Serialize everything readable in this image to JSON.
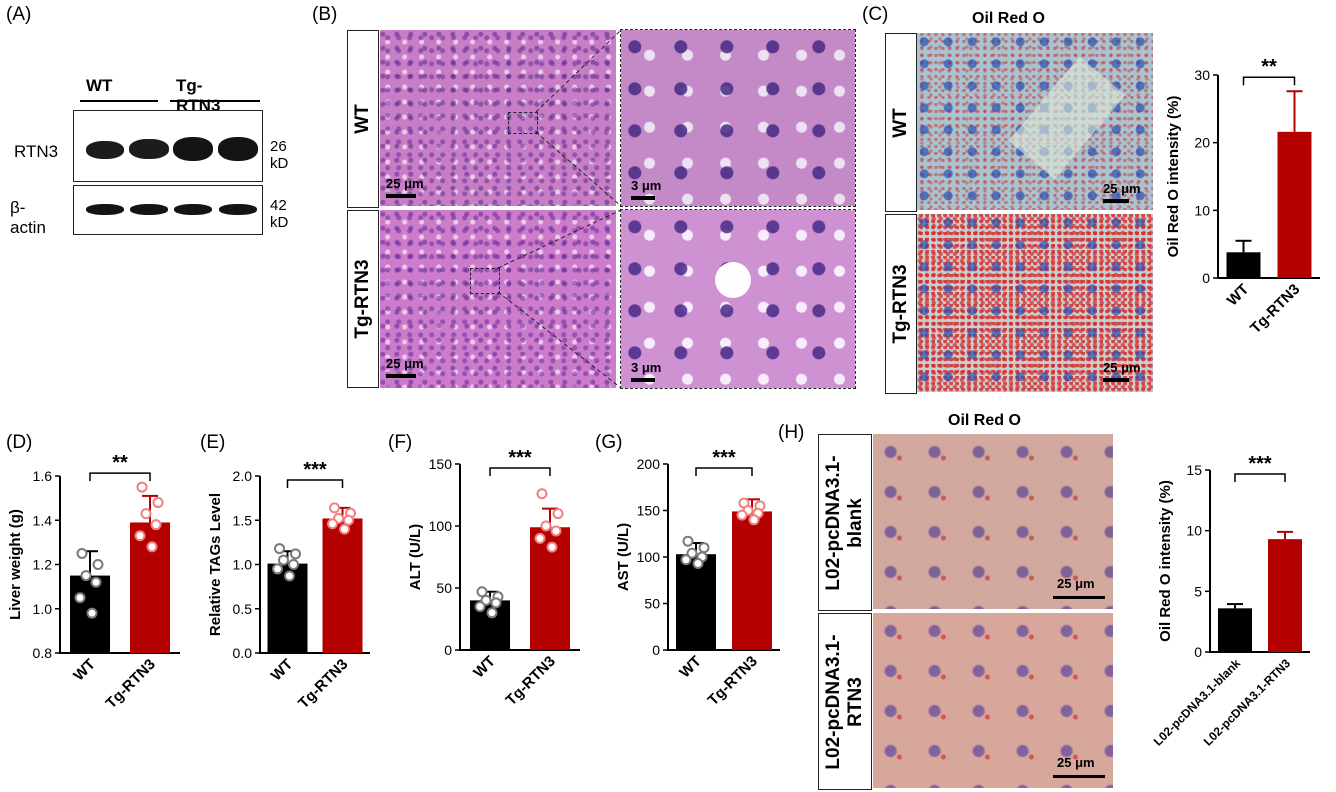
{
  "panels": {
    "A": "(A)",
    "B": "(B)",
    "C": "(C)",
    "D": "(D)",
    "E": "(E)",
    "F": "(F)",
    "G": "(G)",
    "H": "(H)"
  },
  "blot": {
    "group_wt": "WT",
    "group_tg": "Tg-RTN3",
    "row1_label": "RTN3",
    "row1_size": "26 kD",
    "row2_label": "β-actin",
    "row2_size": "42 kD"
  },
  "he": {
    "row_wt": "WT",
    "row_tg": "Tg-RTN3",
    "scale_low": "25 μm",
    "scale_high": "3 μm"
  },
  "oilC": {
    "title": "Oil Red O",
    "row_wt": "WT",
    "row_tg": "Tg-RTN3",
    "scale": "25 μm"
  },
  "oilH": {
    "title": "Oil Red O",
    "row_blank": "L02-pcDNA3.1-\nblank",
    "row_rtn3": "L02-pcDNA3.1-\nRTN3",
    "scale": "25 μm"
  },
  "colors": {
    "control": "#000000",
    "treatment": "#b50000",
    "dot_treatment": "#f08080",
    "dot_control": "#7a7a7a"
  },
  "chart_data": [
    {
      "id": "C",
      "type": "bar",
      "categories": [
        "WT",
        "Tg-RTN3"
      ],
      "values": [
        3.8,
        21.6
      ],
      "errors": [
        1.7,
        6.0
      ],
      "ylabel": "Oil Red O intensity (%)",
      "ylim": [
        0,
        30
      ],
      "yticks": [
        "0",
        "10",
        "20",
        "30"
      ],
      "significance": "**"
    },
    {
      "id": "D",
      "type": "bar",
      "categories": [
        "WT",
        "Tg-RTN3"
      ],
      "values": [
        1.15,
        1.39
      ],
      "errors": [
        0.11,
        0.12
      ],
      "points": [
        [
          1.25,
          1.2,
          1.15,
          1.12,
          1.05,
          0.98
        ],
        [
          1.55,
          1.48,
          1.43,
          1.38,
          1.33,
          1.28
        ]
      ],
      "ylabel": "Liver weight (g)",
      "ylim": [
        0.8,
        1.6
      ],
      "yticks": [
        "0.8",
        "1.0",
        "1.2",
        "1.4",
        "1.6"
      ],
      "significance": "**"
    },
    {
      "id": "E",
      "type": "bar",
      "categories": [
        "WT",
        "Tg-RTN3"
      ],
      "values": [
        1.01,
        1.52
      ],
      "errors": [
        0.14,
        0.12
      ],
      "points": [
        [
          1.18,
          1.12,
          1.05,
          1.0,
          0.95,
          0.87
        ],
        [
          1.64,
          1.58,
          1.52,
          1.5,
          1.46,
          1.4
        ]
      ],
      "ylabel": "Relative TAGs Level",
      "ylim": [
        0.0,
        2.0
      ],
      "yticks": [
        "0.0",
        "0.5",
        "1.0",
        "1.5",
        "2.0"
      ],
      "significance": "***"
    },
    {
      "id": "F",
      "type": "bar",
      "categories": [
        "WT",
        "Tg-RTN3"
      ],
      "values": [
        40,
        99
      ],
      "errors": [
        7,
        15
      ],
      "points": [
        [
          47,
          43,
          40,
          38,
          35,
          30
        ],
        [
          126,
          110,
          100,
          96,
          90,
          83
        ]
      ],
      "ylabel": "ALT (U/L)",
      "ylim": [
        0,
        150
      ],
      "yticks": [
        "0",
        "50",
        "100",
        "150"
      ],
      "significance": "***"
    },
    {
      "id": "G",
      "type": "bar",
      "categories": [
        "WT",
        "Tg-RTN3"
      ],
      "values": [
        103,
        149
      ],
      "errors": [
        12,
        13
      ],
      "points": [
        [
          117,
          110,
          104,
          100,
          97,
          93
        ],
        [
          158,
          155,
          150,
          147,
          145,
          140
        ]
      ],
      "ylabel": "AST (U/L)",
      "ylim": [
        0,
        200
      ],
      "yticks": [
        "0",
        "50",
        "100",
        "150",
        "200"
      ],
      "significance": "***"
    },
    {
      "id": "H",
      "type": "bar",
      "categories": [
        "L02-pcDNA3.1-blank",
        "L02-pcDNA3.1-RTN3"
      ],
      "values": [
        3.6,
        9.3
      ],
      "errors": [
        0.35,
        0.6
      ],
      "ylabel": "Oil Red O intensity (%)",
      "ylim": [
        0,
        15
      ],
      "yticks": [
        "0",
        "5",
        "10",
        "15"
      ],
      "significance": "***"
    }
  ]
}
